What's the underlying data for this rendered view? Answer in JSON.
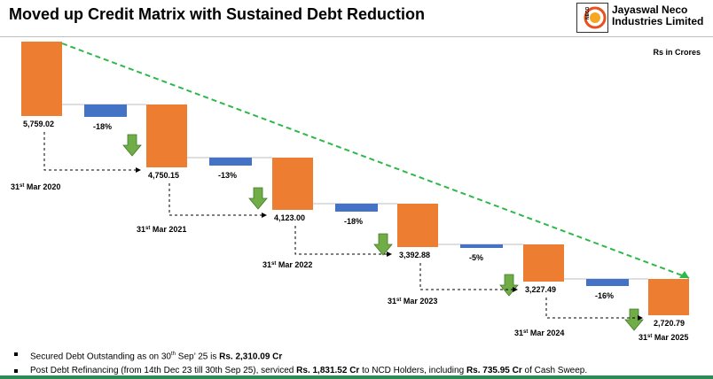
{
  "header": {
    "title": "Moved up Credit Matrix with Sustained Debt Reduction",
    "company_line1": "Jayaswal Neco",
    "company_line2": "Industries Limited",
    "logo_letters": "NECO"
  },
  "unit_label": "Rs in Crores",
  "colors": {
    "bar": "#ED7D31",
    "change_bar": "#4472C4",
    "arrow": "#70AD47",
    "trend": "#2DB84A"
  },
  "chart_data": {
    "type": "bar",
    "title": "Moved up Credit Matrix with Sustained Debt Reduction",
    "ylabel": "Rs in Crores",
    "categories": [
      "31st Mar 2020",
      "31st Mar 2021",
      "31st Mar 2022",
      "31st Mar 2023",
      "31st Mar 2024",
      "31st Mar 2025"
    ],
    "value_labels": [
      "5,759.02",
      "4,750.15",
      "4,123.00",
      "3,392.88",
      "3,227.49",
      "2,720.79"
    ],
    "values": [
      5759.02,
      4750.15,
      4123.0,
      3392.88,
      3227.49,
      2720.79
    ],
    "changes": [
      "-18%",
      "-13%",
      "-18%",
      "-5%",
      "-16%"
    ],
    "date_ordinals": [
      {
        "day": "31",
        "sup": "st",
        "rest": "Mar 2020"
      },
      {
        "day": "31",
        "sup": "st",
        "rest": "Mar 2021"
      },
      {
        "day": "31",
        "sup": "st",
        "rest": "Mar 2022"
      },
      {
        "day": "31",
        "sup": "st",
        "rest": "Mar 2023"
      },
      {
        "day": "31",
        "sup": "st",
        "rest": "Mar 2024"
      },
      {
        "day": "31",
        "sup": "st",
        "rest": "Mar 2025"
      }
    ]
  },
  "notes": [
    {
      "prefix": "Secured Debt Outstanding as on 30",
      "sup": "th",
      "middle": " Sep’ 25 is ",
      "bold1": "Rs. 2,310.09 Cr",
      "suffix": ""
    },
    {
      "prefix": "Post Debt Refinancing (from 14th Dec 23 till 30th Sep 25), serviced ",
      "sup": "",
      "middle": "",
      "bold1": "Rs. 1,831.52 Cr",
      "suffix": " to NCD Holders, including ",
      "bold2": "Rs. 735.95 Cr",
      "suffix2": " of Cash Sweep."
    }
  ]
}
